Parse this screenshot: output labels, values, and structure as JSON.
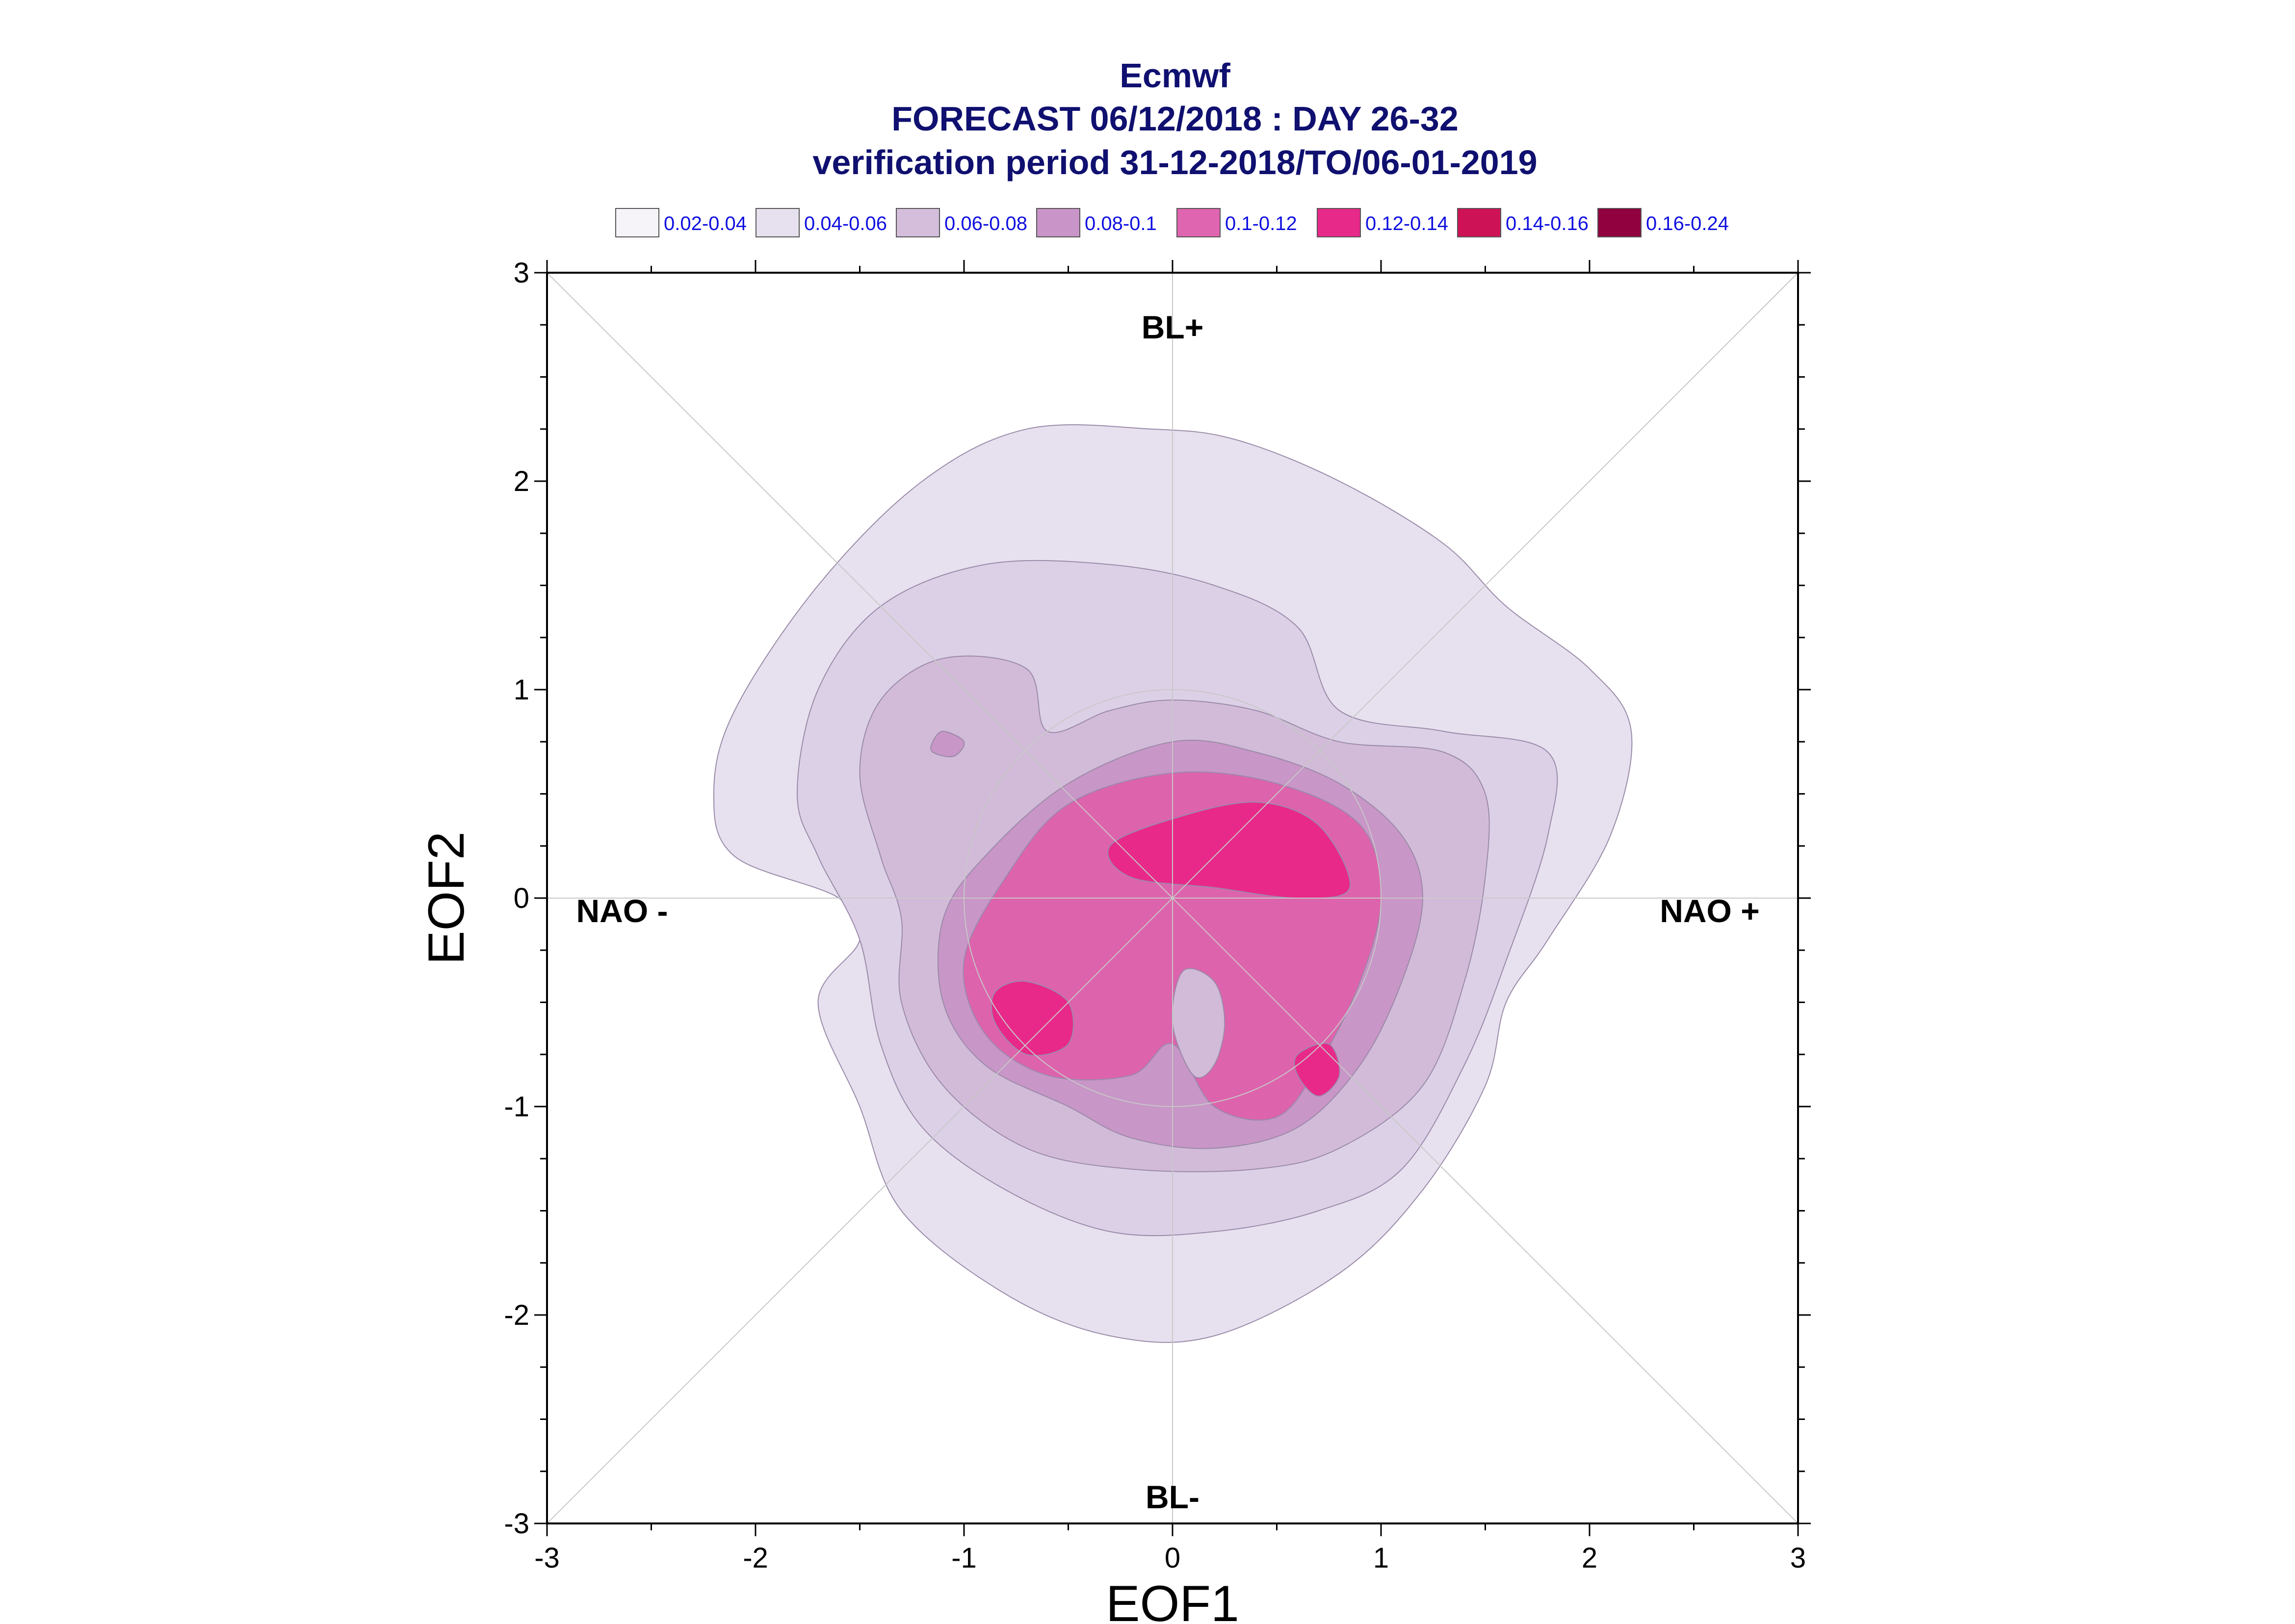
{
  "chart_data": {
    "type": "contour",
    "title_lines": [
      "Ecmwf",
      "FORECAST 06/12/2018 : DAY 26-32",
      "verification period 31-12-2018/TO/06-01-2019"
    ],
    "xlabel": "EOF1",
    "ylabel": "EOF2",
    "xlim": [
      -3,
      3
    ],
    "ylim": [
      -3,
      3
    ],
    "xticks": [
      "-3",
      "-2",
      "-1",
      "0",
      "1",
      "2",
      "3"
    ],
    "yticks": [
      "-3",
      "-2",
      "-1",
      "0",
      "1",
      "2",
      "3"
    ],
    "legend": [
      {
        "label": "0.02-0.04",
        "color": "#f7f4f9"
      },
      {
        "label": "0.04-0.06",
        "color": "#e7e1ef"
      },
      {
        "label": "0.06-0.08",
        "color": "#d4bedc"
      },
      {
        "label": "0.08-0.1",
        "color": "#c994c7"
      },
      {
        "label": "0.1-0.12",
        "color": "#df65b0"
      },
      {
        "label": "0.12-0.14",
        "color": "#e7298a"
      },
      {
        "label": "0.14-0.16",
        "color": "#ce1256"
      },
      {
        "label": "0.16-0.24",
        "color": "#91003f"
      }
    ],
    "regime_labels": {
      "top": "BL+",
      "bottom": "BL-",
      "left": "NAO -",
      "right": "NAO +"
    },
    "reference_circle_radius": 1,
    "contours": [
      {
        "level": "0.02-0.04",
        "color": "#e7e1ef",
        "points": [
          [
            -2.2,
            0.5
          ],
          [
            -2.1,
            0.9
          ],
          [
            -1.7,
            1.5
          ],
          [
            -1.2,
            2.0
          ],
          [
            -0.7,
            2.25
          ],
          [
            -0.1,
            2.25
          ],
          [
            0.3,
            2.2
          ],
          [
            0.8,
            2.0
          ],
          [
            1.3,
            1.7
          ],
          [
            1.6,
            1.4
          ],
          [
            2.0,
            1.1
          ],
          [
            2.2,
            0.8
          ],
          [
            2.1,
            0.3
          ],
          [
            1.8,
            -0.2
          ],
          [
            1.6,
            -0.5
          ],
          [
            1.5,
            -0.9
          ],
          [
            1.2,
            -1.4
          ],
          [
            0.8,
            -1.8
          ],
          [
            0.2,
            -2.1
          ],
          [
            -0.3,
            -2.1
          ],
          [
            -0.8,
            -1.9
          ],
          [
            -1.3,
            -1.5
          ],
          [
            -1.5,
            -1.0
          ],
          [
            -1.7,
            -0.5
          ],
          [
            -1.5,
            -0.2
          ],
          [
            -1.6,
            0.0
          ],
          [
            -2.1,
            0.2
          ]
        ]
      },
      {
        "level": "0.04-0.06",
        "color": "#dcd0e7",
        "points": [
          [
            -1.8,
            0.5
          ],
          [
            -1.7,
            1.0
          ],
          [
            -1.4,
            1.4
          ],
          [
            -0.9,
            1.6
          ],
          [
            -0.3,
            1.6
          ],
          [
            0.2,
            1.5
          ],
          [
            0.6,
            1.3
          ],
          [
            0.8,
            0.9
          ],
          [
            1.3,
            0.8
          ],
          [
            1.8,
            0.7
          ],
          [
            1.8,
            0.3
          ],
          [
            1.6,
            -0.3
          ],
          [
            1.4,
            -0.8
          ],
          [
            1.1,
            -1.3
          ],
          [
            0.7,
            -1.5
          ],
          [
            0.2,
            -1.6
          ],
          [
            -0.3,
            -1.6
          ],
          [
            -0.8,
            -1.4
          ],
          [
            -1.2,
            -1.1
          ],
          [
            -1.4,
            -0.7
          ],
          [
            -1.5,
            -0.2
          ],
          [
            -1.7,
            0.2
          ]
        ]
      },
      {
        "level": "0.06-0.08",
        "color": "#d2bbd9",
        "points": [
          [
            -1.5,
            0.6
          ],
          [
            -1.4,
            0.95
          ],
          [
            -1.1,
            1.15
          ],
          [
            -0.7,
            1.1
          ],
          [
            -0.6,
            0.8
          ],
          [
            -0.3,
            0.9
          ],
          [
            0.0,
            0.95
          ],
          [
            0.4,
            0.9
          ],
          [
            0.8,
            0.75
          ],
          [
            1.3,
            0.7
          ],
          [
            1.5,
            0.5
          ],
          [
            1.5,
            0.1
          ],
          [
            1.4,
            -0.4
          ],
          [
            1.2,
            -0.9
          ],
          [
            0.8,
            -1.2
          ],
          [
            0.4,
            -1.3
          ],
          [
            -0.2,
            -1.3
          ],
          [
            -0.7,
            -1.2
          ],
          [
            -1.1,
            -0.9
          ],
          [
            -1.3,
            -0.5
          ],
          [
            -1.3,
            -0.1
          ],
          [
            -1.4,
            0.2
          ]
        ]
      },
      {
        "level": "0.08-0.1",
        "color": "#c896c7",
        "points": [
          [
            -0.9,
            0.2
          ],
          [
            -0.5,
            0.55
          ],
          [
            0.0,
            0.75
          ],
          [
            0.4,
            0.7
          ],
          [
            0.8,
            0.55
          ],
          [
            1.1,
            0.3
          ],
          [
            1.2,
            0.0
          ],
          [
            1.1,
            -0.4
          ],
          [
            0.9,
            -0.8
          ],
          [
            0.6,
            -1.1
          ],
          [
            0.2,
            -1.2
          ],
          [
            -0.2,
            -1.15
          ],
          [
            -0.5,
            -1.0
          ],
          [
            -0.9,
            -0.8
          ],
          [
            -1.1,
            -0.5
          ],
          [
            -1.1,
            -0.1
          ]
        ]
      },
      {
        "level": "0.1-0.12",
        "color": "#dd63ad",
        "points": [
          [
            -0.8,
            0.1
          ],
          [
            -0.5,
            0.45
          ],
          [
            0.0,
            0.6
          ],
          [
            0.5,
            0.55
          ],
          [
            0.9,
            0.35
          ],
          [
            1.0,
            0.0
          ],
          [
            0.9,
            -0.4
          ],
          [
            0.7,
            -0.8
          ],
          [
            0.5,
            -1.05
          ],
          [
            0.2,
            -1.0
          ],
          [
            0.0,
            -0.7
          ],
          [
            -0.2,
            -0.85
          ],
          [
            -0.6,
            -0.85
          ],
          [
            -0.9,
            -0.65
          ],
          [
            -1.0,
            -0.3
          ]
        ]
      },
      {
        "level": "0.12-0.14",
        "color": "#e8298a",
        "points": [
          [
            -0.3,
            0.25
          ],
          [
            0.0,
            0.38
          ],
          [
            0.4,
            0.46
          ],
          [
            0.7,
            0.35
          ],
          [
            0.85,
            0.05
          ],
          [
            0.6,
            0.0
          ],
          [
            0.2,
            0.05
          ],
          [
            -0.2,
            0.1
          ]
        ]
      },
      {
        "level": "0.12-0.14",
        "color": "#e8298a",
        "points": [
          [
            -0.85,
            -0.45
          ],
          [
            -0.7,
            -0.4
          ],
          [
            -0.5,
            -0.5
          ],
          [
            -0.5,
            -0.7
          ],
          [
            -0.7,
            -0.75
          ],
          [
            -0.85,
            -0.6
          ]
        ]
      },
      {
        "level": "0.12-0.14",
        "color": "#e8298a",
        "points": [
          [
            0.6,
            -0.75
          ],
          [
            0.75,
            -0.7
          ],
          [
            0.8,
            -0.85
          ],
          [
            0.7,
            -0.95
          ],
          [
            0.6,
            -0.85
          ]
        ]
      },
      {
        "level": "0.06-0.08",
        "color": "#d2bbd9",
        "points": [
          [
            0.05,
            -0.35
          ],
          [
            0.2,
            -0.4
          ],
          [
            0.25,
            -0.6
          ],
          [
            0.2,
            -0.8
          ],
          [
            0.1,
            -0.85
          ],
          [
            0.0,
            -0.6
          ]
        ]
      },
      {
        "level": "0.08-0.1",
        "color": "#c896c7",
        "points": [
          [
            -1.15,
            0.75
          ],
          [
            -1.1,
            0.8
          ],
          [
            -1.0,
            0.75
          ],
          [
            -1.05,
            0.68
          ],
          [
            -1.15,
            0.7
          ]
        ]
      }
    ]
  }
}
